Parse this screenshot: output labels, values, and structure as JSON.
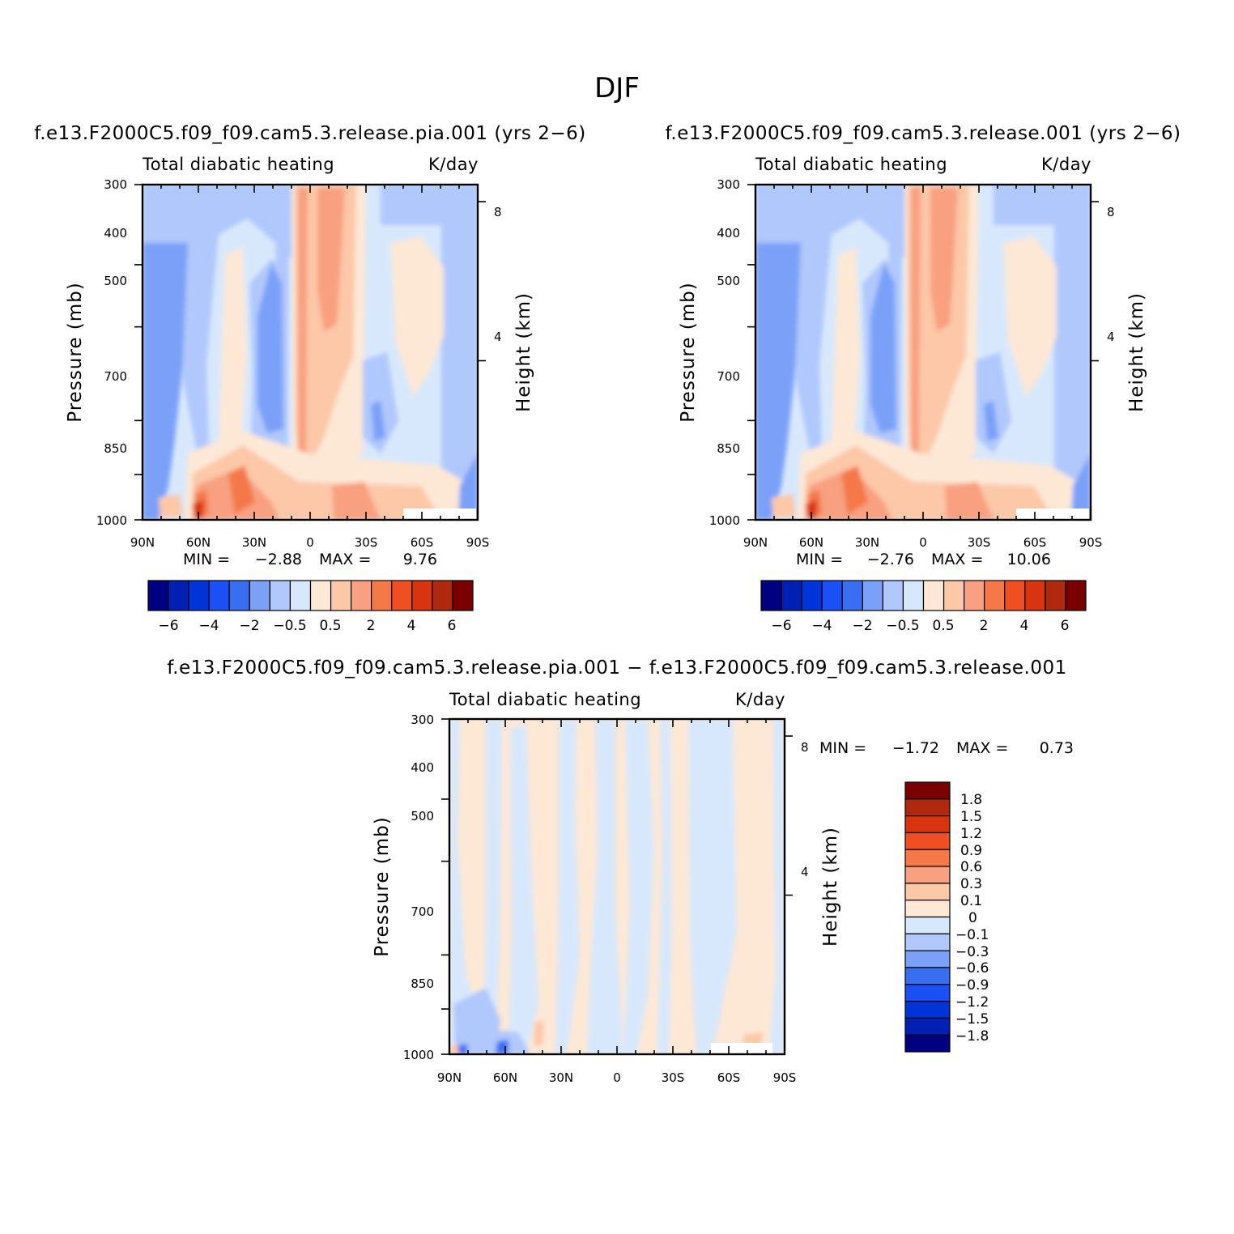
{
  "suptitle": "DJF",
  "palette": {
    "anomaly": [
      "#000080",
      "#0020b4",
      "#0034d8",
      "#1a50f5",
      "#3a6ef0",
      "#7aa0f8",
      "#b0c8fc",
      "#d8e8fc",
      "#fde8d6",
      "#fcc8a8",
      "#f8a080",
      "#f47848",
      "#ef4f22",
      "#d83410",
      "#b0280e",
      "#7a0000"
    ],
    "white": "#ffffff"
  },
  "chart_data": [
    {
      "id": "top-left",
      "type": "heatmap",
      "title": "f.e13.F2000C5.f09_f09.cam5.3.release.pia.001 (yrs 2−6)",
      "subtitle_left": "Total diabatic heating",
      "subtitle_right": "K/day",
      "xlabel": "",
      "ylabel": "Pressure (mb)",
      "ylabel_right": "Height (km)",
      "x_ticks": [
        "90N",
        "60N",
        "30N",
        "0",
        "30S",
        "60S",
        "90S"
      ],
      "y_ticks": [
        "300",
        "400",
        "500",
        "700",
        "850",
        "1000"
      ],
      "y_ticks_right": [
        "8",
        "4"
      ],
      "x_range": [
        90,
        -90
      ],
      "y_range_mb": [
        300,
        1000
      ],
      "y_scale": "log",
      "min_label": "MIN =",
      "min_value": "−2.88",
      "max_label": "MAX =",
      "max_value": "9.76",
      "colorbar_labels": [
        "−6",
        "−4",
        "−2",
        "−0.5",
        "0.5",
        "2",
        "4",
        "6"
      ],
      "colorbar_orientation": "horizontal"
    },
    {
      "id": "top-right",
      "type": "heatmap",
      "title": "f.e13.F2000C5.f09_f09.cam5.3.release.001 (yrs 2−6)",
      "subtitle_left": "Total diabatic heating",
      "subtitle_right": "K/day",
      "xlabel": "",
      "ylabel": "Pressure (mb)",
      "ylabel_right": "Height (km)",
      "x_ticks": [
        "90N",
        "60N",
        "30N",
        "0",
        "30S",
        "60S",
        "90S"
      ],
      "y_ticks": [
        "300",
        "400",
        "500",
        "700",
        "850",
        "1000"
      ],
      "y_ticks_right": [
        "8",
        "4"
      ],
      "x_range": [
        90,
        -90
      ],
      "y_range_mb": [
        300,
        1000
      ],
      "y_scale": "log",
      "min_label": "MIN =",
      "min_value": "−2.76",
      "max_label": "MAX =",
      "max_value": "10.06",
      "colorbar_labels": [
        "−6",
        "−4",
        "−2",
        "−0.5",
        "0.5",
        "2",
        "4",
        "6"
      ],
      "colorbar_orientation": "horizontal"
    },
    {
      "id": "bottom",
      "type": "heatmap",
      "title": "f.e13.F2000C5.f09_f09.cam5.3.release.pia.001 − f.e13.F2000C5.f09_f09.cam5.3.release.001",
      "subtitle_left": "Total diabatic heating",
      "subtitle_right": "K/day",
      "xlabel": "",
      "ylabel": "Pressure (mb)",
      "ylabel_right": "Height (km)",
      "x_ticks": [
        "90N",
        "60N",
        "30N",
        "0",
        "30S",
        "60S",
        "90S"
      ],
      "y_ticks": [
        "300",
        "400",
        "500",
        "700",
        "850",
        "1000"
      ],
      "y_ticks_right": [
        "8",
        "4"
      ],
      "x_range": [
        90,
        -90
      ],
      "y_range_mb": [
        300,
        1000
      ],
      "y_scale": "log",
      "min_label": "MIN =",
      "min_value": "−1.72",
      "max_label": "MAX =",
      "max_value": "0.73",
      "colorbar_labels": [
        "1.8",
        "1.5",
        "1.2",
        "0.9",
        "0.6",
        "0.3",
        "0.1",
        "0",
        "−0.1",
        "−0.3",
        "−0.6",
        "−0.9",
        "−1.2",
        "−1.5",
        "−1.8"
      ],
      "colorbar_orientation": "vertical"
    }
  ]
}
